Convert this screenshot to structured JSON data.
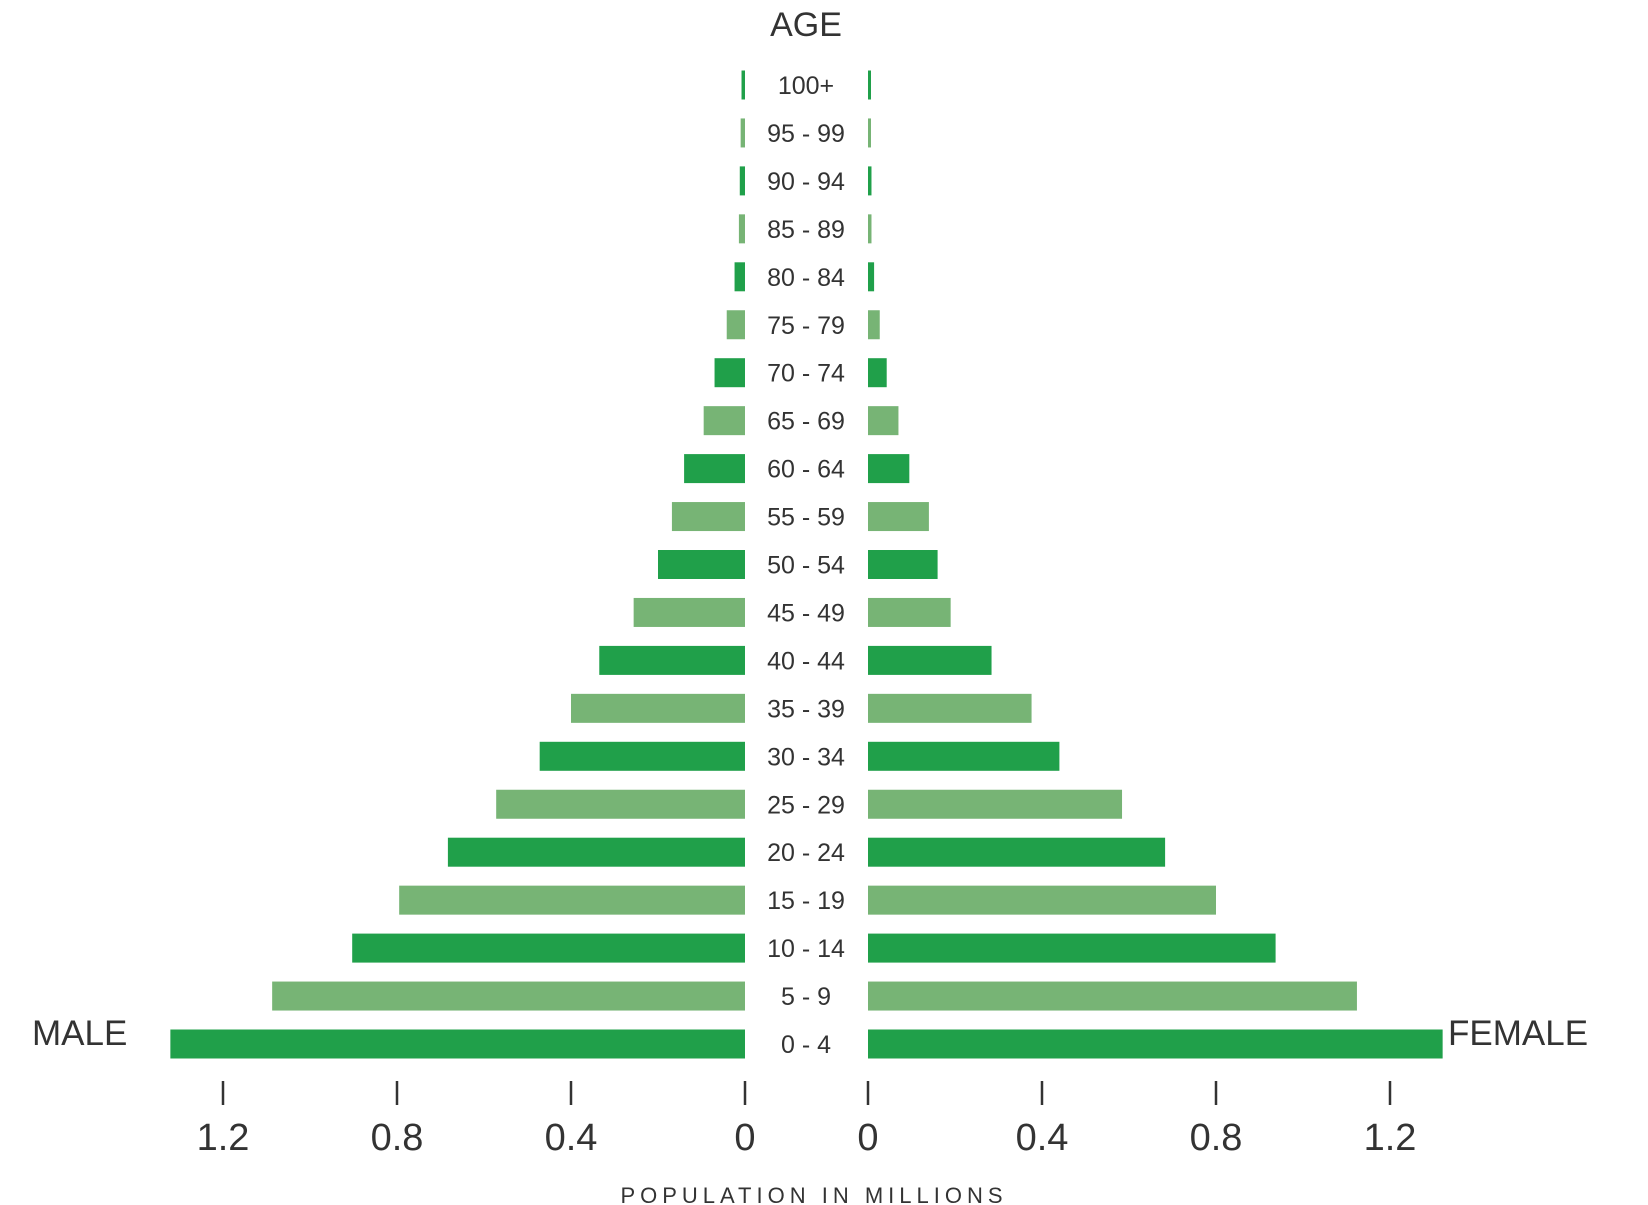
{
  "chart_data": {
    "type": "bar",
    "orientation": "horizontal-population-pyramid",
    "title": "AGE",
    "xlabel": "POPULATION IN MILLIONS",
    "left_label": "MALE",
    "right_label": "FEMALE",
    "xlim": [
      0,
      1.4
    ],
    "xticks": [
      "1.2",
      "0.8",
      "0.4",
      "0",
      "0",
      "0.4",
      "0.8",
      "1.2"
    ],
    "tick_values_left": [
      1.2,
      0.8,
      0.4,
      0
    ],
    "tick_values_right": [
      0,
      0.4,
      0.8,
      1.2
    ],
    "categories": [
      "100+",
      "95 - 99",
      "90 - 94",
      "85 - 89",
      "80 - 84",
      "75 - 79",
      "70 - 74",
      "65 - 69",
      "60 - 64",
      "55 - 59",
      "50 - 54",
      "45 - 49",
      "40 - 44",
      "35 - 39",
      "30 - 34",
      "25 - 29",
      "20 - 24",
      "15 - 19",
      "10 - 14",
      "5 - 9",
      "0 - 4"
    ],
    "series": [
      {
        "name": "MALE",
        "values": [
          0.008,
          0.01,
          0.012,
          0.014,
          0.024,
          0.042,
          0.07,
          0.095,
          0.14,
          0.168,
          0.2,
          0.256,
          0.335,
          0.4,
          0.472,
          0.572,
          0.683,
          0.795,
          0.903,
          1.087,
          1.321
        ]
      },
      {
        "name": "FEMALE",
        "values": [
          0.006,
          0.006,
          0.008,
          0.008,
          0.014,
          0.027,
          0.043,
          0.07,
          0.095,
          0.14,
          0.16,
          0.19,
          0.284,
          0.376,
          0.44,
          0.584,
          0.683,
          0.8,
          0.937,
          1.124,
          1.321
        ]
      }
    ],
    "colors": {
      "dark": "#20a04a",
      "light": "#77b475"
    },
    "grid": false
  }
}
